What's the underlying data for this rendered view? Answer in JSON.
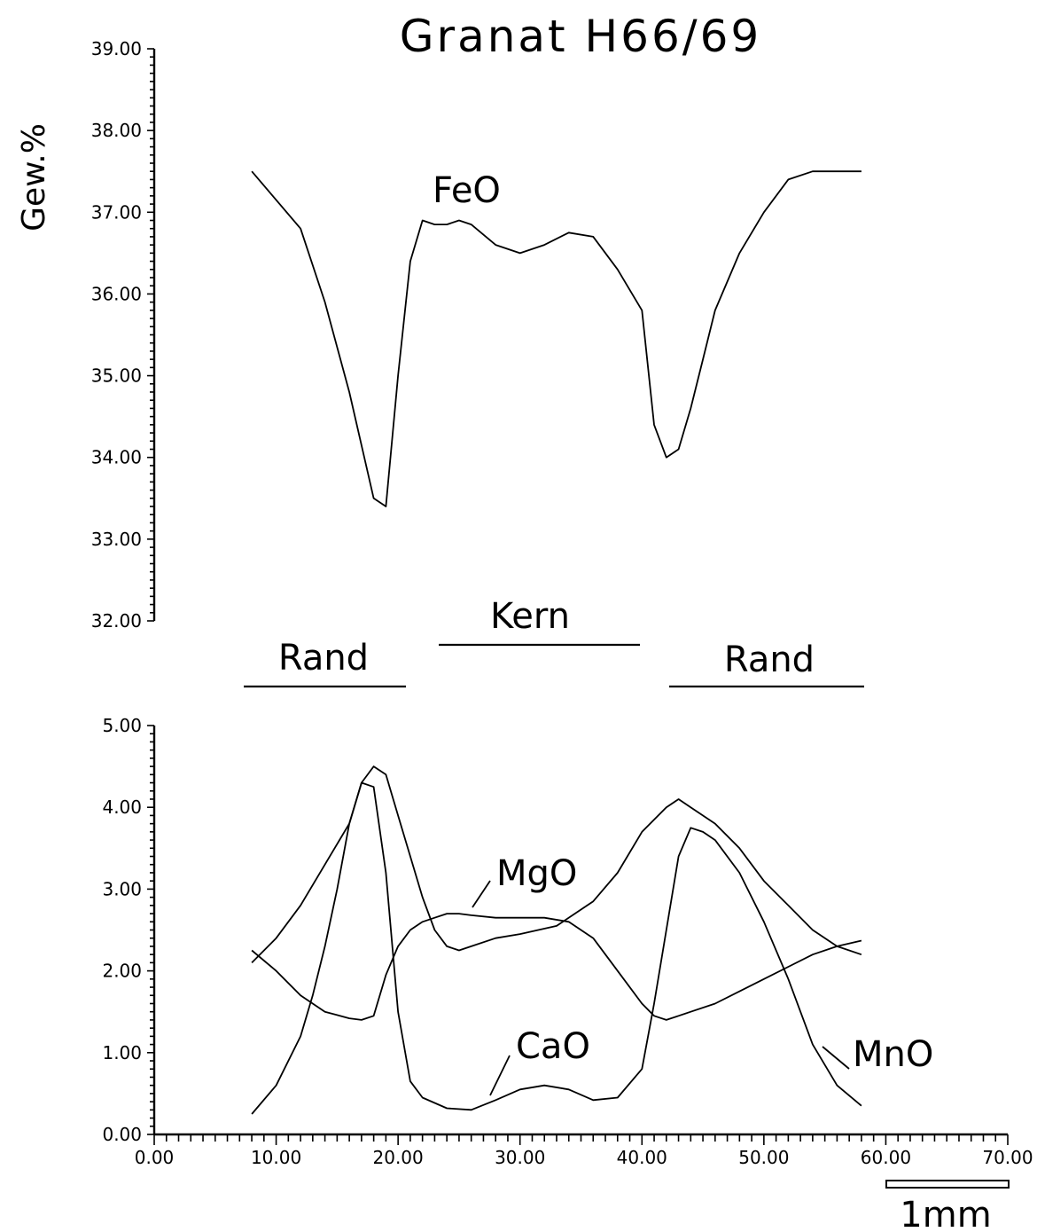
{
  "chart_data": {
    "type": "line",
    "title": "Granat H66/69",
    "ylabel": "Gew.%",
    "xlabel": "",
    "xlim": [
      0,
      70
    ],
    "x_ticks": [
      "0.00",
      "10.00",
      "20.00",
      "30.00",
      "40.00",
      "50.00",
      "60.00",
      "70.00"
    ],
    "scale_bar_label": "1mm",
    "zone_labels": {
      "left": "Rand",
      "center": "Kern",
      "right": "Rand"
    },
    "panels": [
      {
        "id": "upper",
        "ylim": [
          32,
          39
        ],
        "y_ticks": [
          "32.00",
          "33.00",
          "34.00",
          "35.00",
          "36.00",
          "37.00",
          "38.00",
          "39.00"
        ],
        "series": [
          {
            "name": "FeO",
            "x": [
              8,
              12,
              14,
              16,
              18,
              19,
              20,
              21,
              22,
              23,
              24,
              25,
              26,
              28,
              30,
              32,
              34,
              36,
              38,
              40,
              41,
              42,
              43,
              44,
              45,
              46,
              48,
              50,
              52,
              54,
              56,
              58
            ],
            "y": [
              37.5,
              36.8,
              35.9,
              34.8,
              33.5,
              33.4,
              35.0,
              36.4,
              36.9,
              36.85,
              36.85,
              36.9,
              36.85,
              36.6,
              36.5,
              36.6,
              36.75,
              36.7,
              36.3,
              35.8,
              34.4,
              34.0,
              34.1,
              34.6,
              35.2,
              35.8,
              36.5,
              37.0,
              37.4,
              37.5,
              37.5,
              37.5
            ]
          }
        ]
      },
      {
        "id": "lower",
        "ylim": [
          0,
          5
        ],
        "y_ticks": [
          "0.00",
          "1.00",
          "2.00",
          "3.00",
          "4.00",
          "5.00"
        ],
        "series": [
          {
            "name": "MgO",
            "x": [
              8,
              10,
              12,
              14,
              16,
              17,
              18,
              19,
              20,
              21,
              22,
              23,
              24,
              25,
              26,
              28,
              30,
              33,
              36,
              38,
              40,
              42,
              43,
              44,
              46,
              48,
              50,
              52,
              54,
              56,
              58
            ],
            "y": [
              2.1,
              2.4,
              2.8,
              3.3,
              3.8,
              4.3,
              4.5,
              4.4,
              3.9,
              3.4,
              2.9,
              2.5,
              2.3,
              2.25,
              2.3,
              2.4,
              2.45,
              2.55,
              2.85,
              3.2,
              3.7,
              4.0,
              4.1,
              4.0,
              3.8,
              3.5,
              3.1,
              2.8,
              2.5,
              2.3,
              2.2
            ]
          },
          {
            "name": "CaO",
            "x": [
              8,
              10,
              12,
              14,
              16,
              17,
              18,
              19,
              20,
              21,
              22,
              23,
              24,
              25,
              26,
              28,
              30,
              32,
              34,
              36,
              38,
              40,
              41,
              42,
              43,
              44,
              46,
              48,
              50,
              52,
              54,
              56,
              58
            ],
            "y": [
              2.25,
              2.0,
              1.7,
              1.5,
              1.42,
              1.4,
              1.45,
              1.95,
              2.3,
              2.5,
              2.6,
              2.65,
              2.7,
              2.7,
              2.68,
              2.65,
              2.65,
              2.65,
              2.6,
              2.4,
              2.0,
              1.6,
              1.45,
              1.4,
              1.45,
              1.5,
              1.6,
              1.75,
              1.9,
              2.05,
              2.2,
              2.3,
              2.37
            ]
          },
          {
            "name": "MnO",
            "x": [
              8,
              10,
              12,
              13,
              14,
              15,
              16,
              17,
              18,
              19,
              20,
              21,
              22,
              24,
              26,
              28,
              30,
              32,
              34,
              36,
              38,
              40,
              41,
              42,
              43,
              44,
              45,
              46,
              48,
              50,
              52,
              54,
              56,
              58
            ],
            "y": [
              0.25,
              0.6,
              1.2,
              1.7,
              2.3,
              3.0,
              3.8,
              4.3,
              4.25,
              3.2,
              1.5,
              0.65,
              0.45,
              0.32,
              0.3,
              0.42,
              0.55,
              0.6,
              0.55,
              0.42,
              0.45,
              0.8,
              1.6,
              2.5,
              3.4,
              3.75,
              3.7,
              3.6,
              3.2,
              2.6,
              1.9,
              1.1,
              0.6,
              0.35
            ]
          }
        ]
      }
    ]
  }
}
